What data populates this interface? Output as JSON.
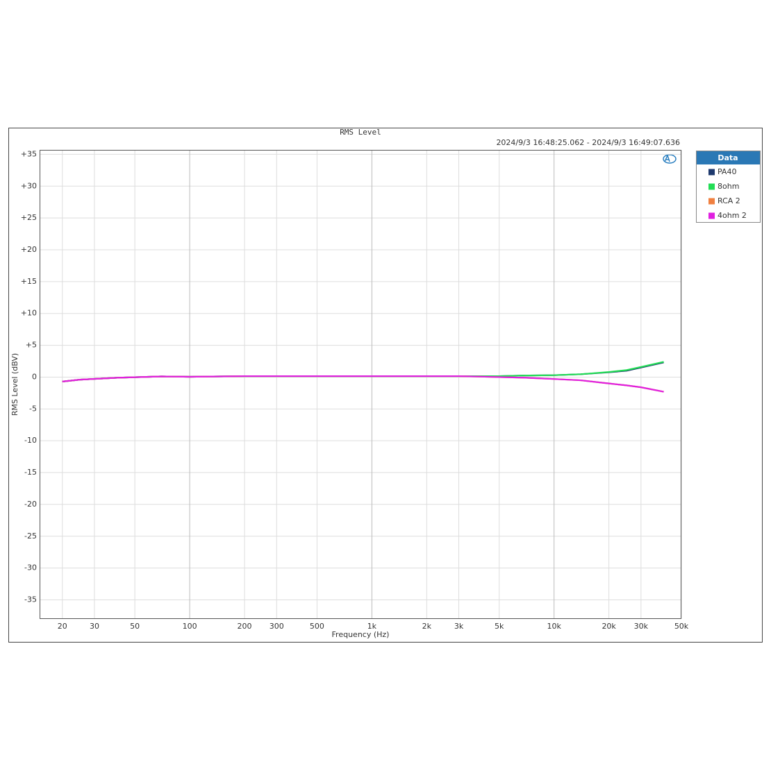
{
  "chart_data": {
    "type": "line",
    "title": "RMS Level",
    "subtitle": "2024/9/3 16:48:25.062 -   2024/9/3 16:49:07.636",
    "xlabel": "Frequency (Hz)",
    "ylabel": "RMS Level (dBV)",
    "legend_title": "Data",
    "xscale": "log",
    "grid": true,
    "xlim": [
      15,
      50000
    ],
    "ylim": [
      -38,
      35.7
    ],
    "xticks": [
      20,
      30,
      50,
      100,
      200,
      300,
      500,
      {
        "value": 1000,
        "label": "1k"
      },
      {
        "value": 2000,
        "label": "2k"
      },
      {
        "value": 3000,
        "label": "3k"
      },
      {
        "value": 5000,
        "label": "5k"
      },
      {
        "value": 10000,
        "label": "10k"
      },
      {
        "value": 20000,
        "label": "20k"
      },
      {
        "value": 30000,
        "label": "30k"
      },
      {
        "value": 50000,
        "label": "50k"
      }
    ],
    "yticks": [
      {
        "value": 35,
        "label": "+35"
      },
      {
        "value": 30,
        "label": "+30"
      },
      {
        "value": 25,
        "label": "+25"
      },
      {
        "value": 20,
        "label": "+20"
      },
      {
        "value": 15,
        "label": "+15"
      },
      {
        "value": 10,
        "label": "+10"
      },
      {
        "value": 5,
        "label": "+5"
      },
      0,
      -5,
      -10,
      -15,
      -20,
      -25,
      -30,
      -35
    ],
    "x": [
      20,
      25,
      40,
      70,
      100,
      200,
      500,
      1000,
      2000,
      3000,
      5000,
      7000,
      10000,
      14000,
      20000,
      25000,
      30000,
      40000
    ],
    "series": [
      {
        "name": "PA40",
        "color": "#1f3a6e",
        "values": [
          -0.7,
          -0.4,
          -0.1,
          0.1,
          0.05,
          0.15,
          0.15,
          0.15,
          0.15,
          0.15,
          0.15,
          0.25,
          0.3,
          0.45,
          0.75,
          1.0,
          1.5,
          2.3
        ]
      },
      {
        "name": "8ohm",
        "color": "#22dd55",
        "values": [
          -0.7,
          -0.4,
          -0.1,
          0.1,
          0.05,
          0.15,
          0.15,
          0.15,
          0.15,
          0.15,
          0.15,
          0.25,
          0.3,
          0.45,
          0.8,
          1.1,
          1.6,
          2.4
        ]
      },
      {
        "name": "RCA 2",
        "color": "#f08040",
        "values": [
          -0.7,
          -0.4,
          -0.1,
          0.1,
          0.05,
          0.15,
          0.15,
          0.15,
          0.15,
          0.15,
          0.0,
          -0.1,
          -0.3,
          -0.5,
          -1.0,
          -1.3,
          -1.6,
          -2.3
        ]
      },
      {
        "name": "4ohm 2",
        "color": "#e020e0",
        "values": [
          -0.7,
          -0.4,
          -0.1,
          0.1,
          0.05,
          0.15,
          0.15,
          0.15,
          0.15,
          0.15,
          0.0,
          -0.1,
          -0.3,
          -0.5,
          -1.0,
          -1.3,
          -1.6,
          -2.3
        ]
      }
    ]
  }
}
